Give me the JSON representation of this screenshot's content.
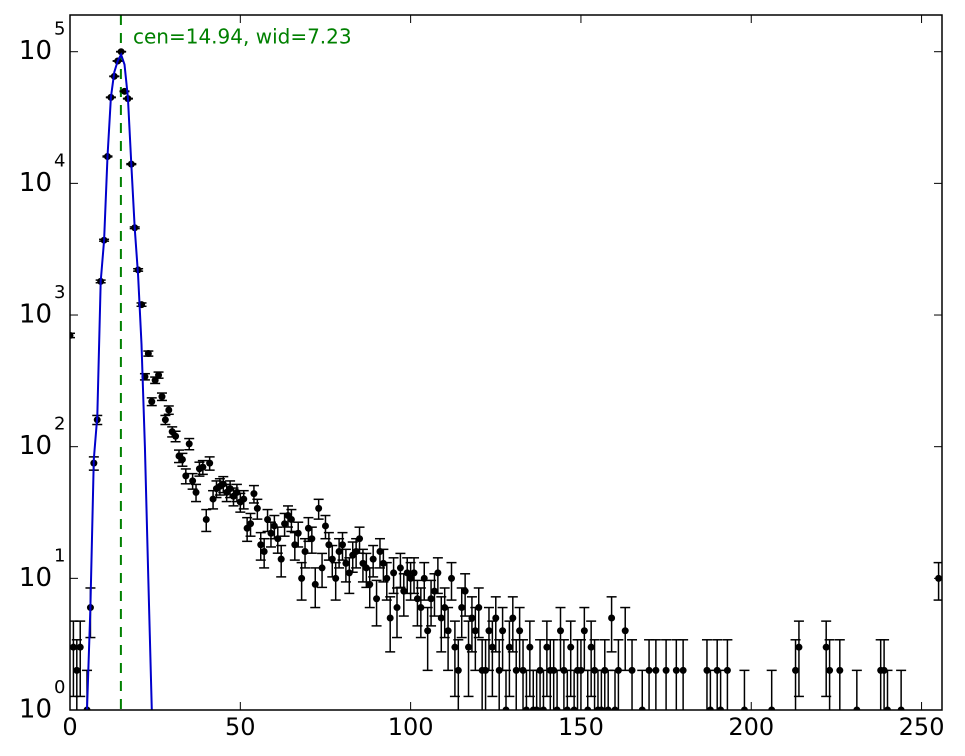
{
  "chart_data": {
    "type": "errorbar",
    "annotation": "cen=14.94, wid=7.23",
    "vline": 14.94,
    "vline_color": "#008000",
    "log_y": true,
    "xlim": [
      0,
      256
    ],
    "xticks": [
      0,
      50,
      100,
      150,
      200,
      250
    ],
    "ylim": [
      1,
      190000
    ],
    "yticks": [
      {
        "value": 1,
        "label": "10",
        "exponent": "0"
      },
      {
        "value": 10,
        "label": "10",
        "exponent": "1"
      },
      {
        "value": 100,
        "label": "10",
        "exponent": "2"
      },
      {
        "value": 1000,
        "label": "10",
        "exponent": "3"
      },
      {
        "value": 10000,
        "label": "10",
        "exponent": "4"
      },
      {
        "value": 100000,
        "label": "10",
        "exponent": "5"
      }
    ],
    "errors": "poisson",
    "series": [
      {
        "color": "#000000",
        "x": [
          0,
          1,
          2,
          3,
          5,
          6,
          7,
          8,
          9,
          10,
          11,
          12,
          13,
          14,
          15,
          16,
          17,
          18,
          19,
          20,
          21,
          22,
          23,
          24,
          25,
          26,
          27,
          28,
          29,
          30,
          31,
          32,
          33,
          34,
          35,
          36,
          37,
          38,
          39,
          40,
          41,
          42,
          43,
          44,
          45,
          46,
          47,
          48,
          49,
          50,
          51,
          52,
          53,
          54,
          55,
          56,
          57,
          58,
          59,
          60,
          61,
          62,
          63,
          64,
          65,
          66,
          67,
          68,
          69,
          70,
          71,
          72,
          73,
          74,
          75,
          76,
          77,
          78,
          79,
          80,
          81,
          82,
          83,
          84,
          85,
          86,
          87,
          88,
          89,
          90,
          91,
          92,
          93,
          94,
          95,
          96,
          97,
          98,
          99,
          100,
          101,
          102,
          103,
          104,
          105,
          106,
          107,
          108,
          109,
          110,
          111,
          112,
          113,
          114,
          115,
          116,
          117,
          118,
          119,
          120,
          121,
          122,
          123,
          124,
          125,
          126,
          127,
          128,
          129,
          130,
          131,
          132,
          133,
          134,
          135,
          136,
          137,
          138,
          139,
          140,
          141,
          142,
          143,
          144,
          145,
          146,
          147,
          148,
          149,
          150,
          151,
          152,
          153,
          154,
          155,
          156,
          157,
          158,
          159,
          160,
          161,
          163,
          165,
          168,
          170,
          172,
          175,
          178,
          180,
          187,
          188,
          190,
          191,
          193,
          198,
          206,
          213,
          214,
          222,
          223,
          226,
          231,
          238,
          239,
          240,
          244,
          255
        ],
        "values": [
          700,
          3,
          2,
          3,
          1,
          6,
          75,
          160,
          1800,
          3700,
          16000,
          45000,
          65000,
          85000,
          100000,
          50000,
          44000,
          14000,
          4600,
          2200,
          1200,
          340,
          510,
          220,
          320,
          350,
          240,
          160,
          190,
          130,
          120,
          85,
          80,
          60,
          105,
          55,
          45,
          68,
          70,
          28,
          75,
          40,
          48,
          50,
          52,
          45,
          48,
          42,
          45,
          38,
          40,
          24,
          26,
          44,
          34,
          18,
          16,
          28,
          22,
          25,
          20,
          14,
          26,
          30,
          28,
          18,
          22,
          10,
          16,
          24,
          20,
          9,
          34,
          12,
          25,
          18,
          14,
          10,
          16,
          18,
          13,
          11,
          15,
          16,
          20,
          13,
          12,
          9,
          14,
          7,
          16,
          13,
          10,
          5,
          11,
          6,
          12,
          8,
          11,
          10,
          11,
          7,
          6,
          10,
          4,
          7,
          8,
          11,
          5,
          6,
          4,
          10,
          3,
          2,
          6,
          8,
          3,
          5,
          4,
          6,
          2,
          2,
          4,
          3,
          5,
          2,
          4,
          1,
          3,
          5,
          2,
          4,
          2,
          1,
          3,
          1,
          1,
          2,
          1,
          3,
          2,
          2,
          1,
          4,
          2,
          1,
          3,
          1,
          2,
          2,
          4,
          1,
          3,
          2,
          1,
          1,
          2,
          1,
          5,
          1,
          2,
          4,
          2,
          1,
          2,
          2,
          2,
          2,
          2,
          2,
          1,
          2,
          1,
          2,
          1,
          1,
          2,
          3,
          3,
          2,
          2,
          1,
          2,
          2,
          1,
          1,
          10
        ]
      },
      {
        "color": "#0000cc",
        "x": [
          5,
          6,
          7,
          8,
          9,
          10,
          11,
          12,
          13,
          14,
          15,
          16,
          17,
          18,
          19,
          20,
          21,
          22,
          23,
          24
        ],
        "values": [
          1,
          6,
          80,
          170,
          1800,
          3700,
          16000,
          45000,
          70000,
          85000,
          95000,
          80000,
          45000,
          14000,
          4600,
          2000,
          600,
          100,
          10,
          1
        ]
      }
    ]
  }
}
